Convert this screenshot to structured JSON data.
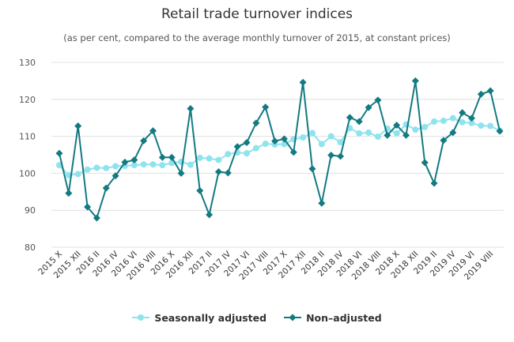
{
  "chart_data": {
    "type": "line",
    "title": "Retail trade turnover indices",
    "subtitle": "(as per cent, compared to the average monthly turnover of 2015, at constant prices)",
    "ylim": [
      80,
      130
    ],
    "yticks": [
      80,
      90,
      100,
      110,
      120,
      130
    ],
    "grid": true,
    "legend_position": "bottom",
    "x": [
      "2015 X",
      "2015 XI",
      "2015 XII",
      "2016 I",
      "2016 II",
      "2016 III",
      "2016 IV",
      "2016 V",
      "2016 VI",
      "2016 VII",
      "2016 VIII",
      "2016 IX",
      "2016 X",
      "2016 XI",
      "2016 XII",
      "2017 I",
      "2017 II",
      "2017 III",
      "2017 IV",
      "2017 V",
      "2017 VI",
      "2017 VII",
      "2017 VIII",
      "2017 IX",
      "2017 X",
      "2017 XI",
      "2017 XII",
      "2018 I",
      "2018 II",
      "2018 III",
      "2018 IV",
      "2018 V",
      "2018 VI",
      "2018 VII",
      "2018 VIII",
      "2018 IX",
      "2018 X",
      "2018 XI",
      "2018 XII",
      "2019 I",
      "2019 II",
      "2019 III",
      "2019 IV",
      "2019 V",
      "2019 VI",
      "2019 VII",
      "2019 VIII",
      "2019 IX"
    ],
    "xticks": [
      "2015 X",
      "2015 XII",
      "2016 II",
      "2016 IV",
      "2016 VI",
      "2016 VIII",
      "2016 X",
      "2016 XII",
      "2017 II",
      "2017 IV",
      "2017 VI",
      "2017 VIII",
      "2017 X",
      "2017 XII",
      "2018 II",
      "2018 IV",
      "2018 VI",
      "2018 VIII",
      "2018 X",
      "2018 XII",
      "2019 II",
      "2019 IV",
      "2019 VI",
      "2019 VIII"
    ],
    "series": [
      {
        "name": "Seasonally adjusted",
        "color": "#8fe3ee",
        "marker": "circle",
        "values": [
          102.2,
          99.5,
          99.8,
          101.0,
          101.5,
          101.4,
          101.9,
          102.0,
          102.2,
          102.4,
          102.4,
          102.2,
          102.8,
          103.1,
          102.3,
          104.2,
          104.0,
          103.6,
          105.2,
          105.6,
          105.4,
          106.8,
          108.0,
          107.8,
          107.9,
          109.2,
          109.7,
          110.9,
          107.9,
          110.0,
          108.4,
          112.2,
          110.8,
          111.0,
          109.9,
          112.1,
          110.8,
          113.2,
          111.8,
          112.5,
          114.0,
          114.2,
          114.9,
          113.8,
          113.6,
          112.9,
          112.8,
          111.5
        ]
      },
      {
        "name": "Non–adjusted",
        "color": "#137a82",
        "marker": "diamond",
        "values": [
          105.4,
          94.6,
          112.8,
          90.9,
          87.9,
          96.0,
          99.3,
          103.0,
          103.6,
          108.8,
          111.5,
          104.3,
          104.3,
          100.0,
          117.5,
          95.3,
          88.8,
          100.4,
          100.1,
          107.2,
          108.3,
          113.6,
          117.9,
          108.7,
          109.3,
          105.7,
          124.6,
          101.2,
          91.9,
          104.9,
          104.6,
          115.1,
          114.0,
          117.8,
          119.8,
          110.3,
          113.0,
          110.3,
          125.0,
          102.9,
          97.3,
          108.9,
          111.0,
          116.4,
          114.9,
          121.4,
          122.3,
          111.4
        ]
      }
    ]
  }
}
